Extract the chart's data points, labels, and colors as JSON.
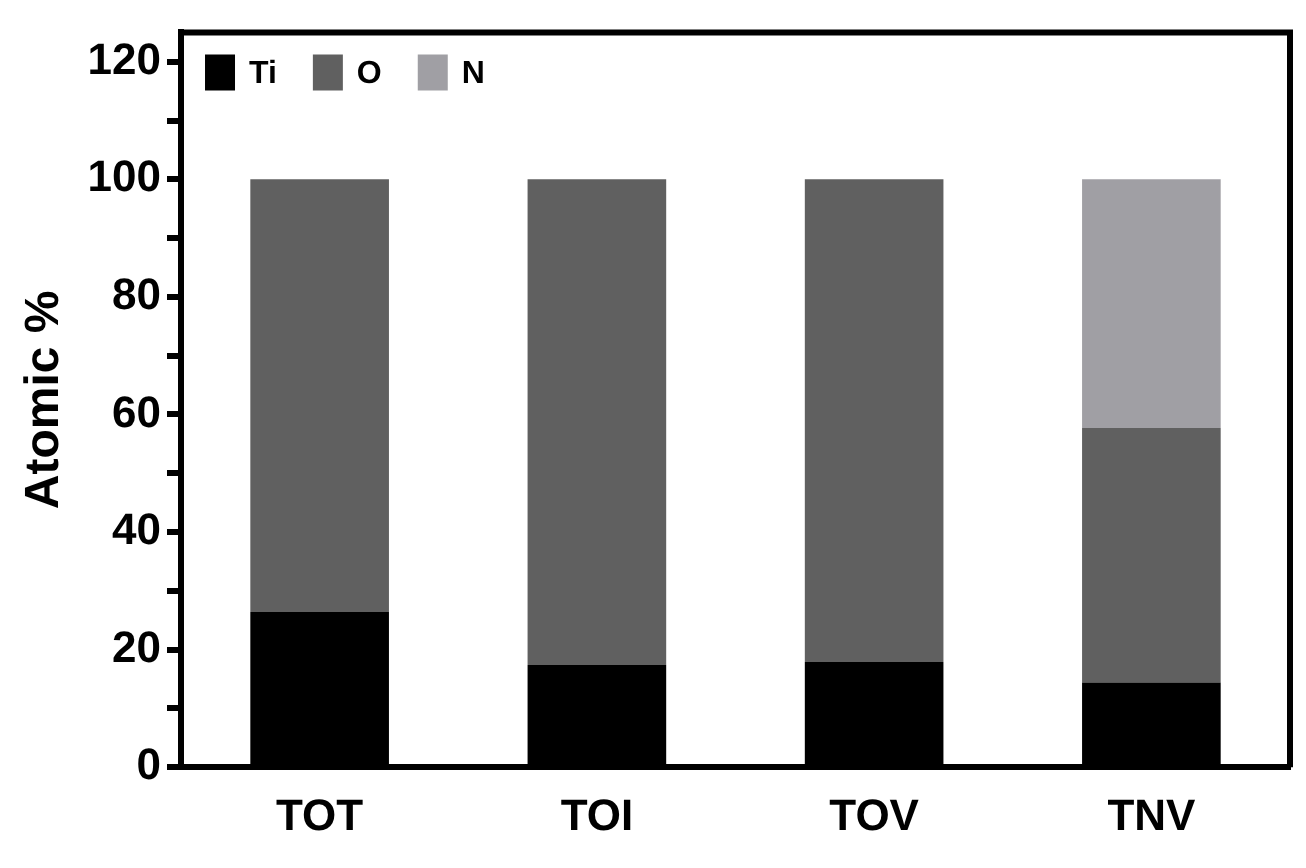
{
  "chart_data": {
    "type": "bar",
    "stacked": true,
    "ylabel": "Atomic %",
    "categories": [
      "TOT",
      "TOI",
      "TOV",
      "TNV"
    ],
    "series": [
      {
        "name": "Ti",
        "color": "#000000",
        "values": [
          26.4,
          17.4,
          17.9,
          14.4
        ]
      },
      {
        "name": "O",
        "color": "#606060",
        "values": [
          73.6,
          82.6,
          82.1,
          43.3
        ]
      },
      {
        "name": "N",
        "color": "#a09fa4",
        "values": [
          null,
          null,
          null,
          42.3
        ]
      }
    ],
    "ylim": [
      0,
      125
    ],
    "yticks": [
      0,
      {
        "value": 10,
        "label": null
      },
      20,
      {
        "value": 30,
        "label": null
      },
      40,
      {
        "value": 50,
        "label": null
      },
      60,
      {
        "value": 70,
        "label": null
      },
      80,
      {
        "value": 90,
        "label": null
      },
      100,
      {
        "value": 110,
        "label": null
      },
      120
    ],
    "grid": false,
    "legend": "top left"
  }
}
